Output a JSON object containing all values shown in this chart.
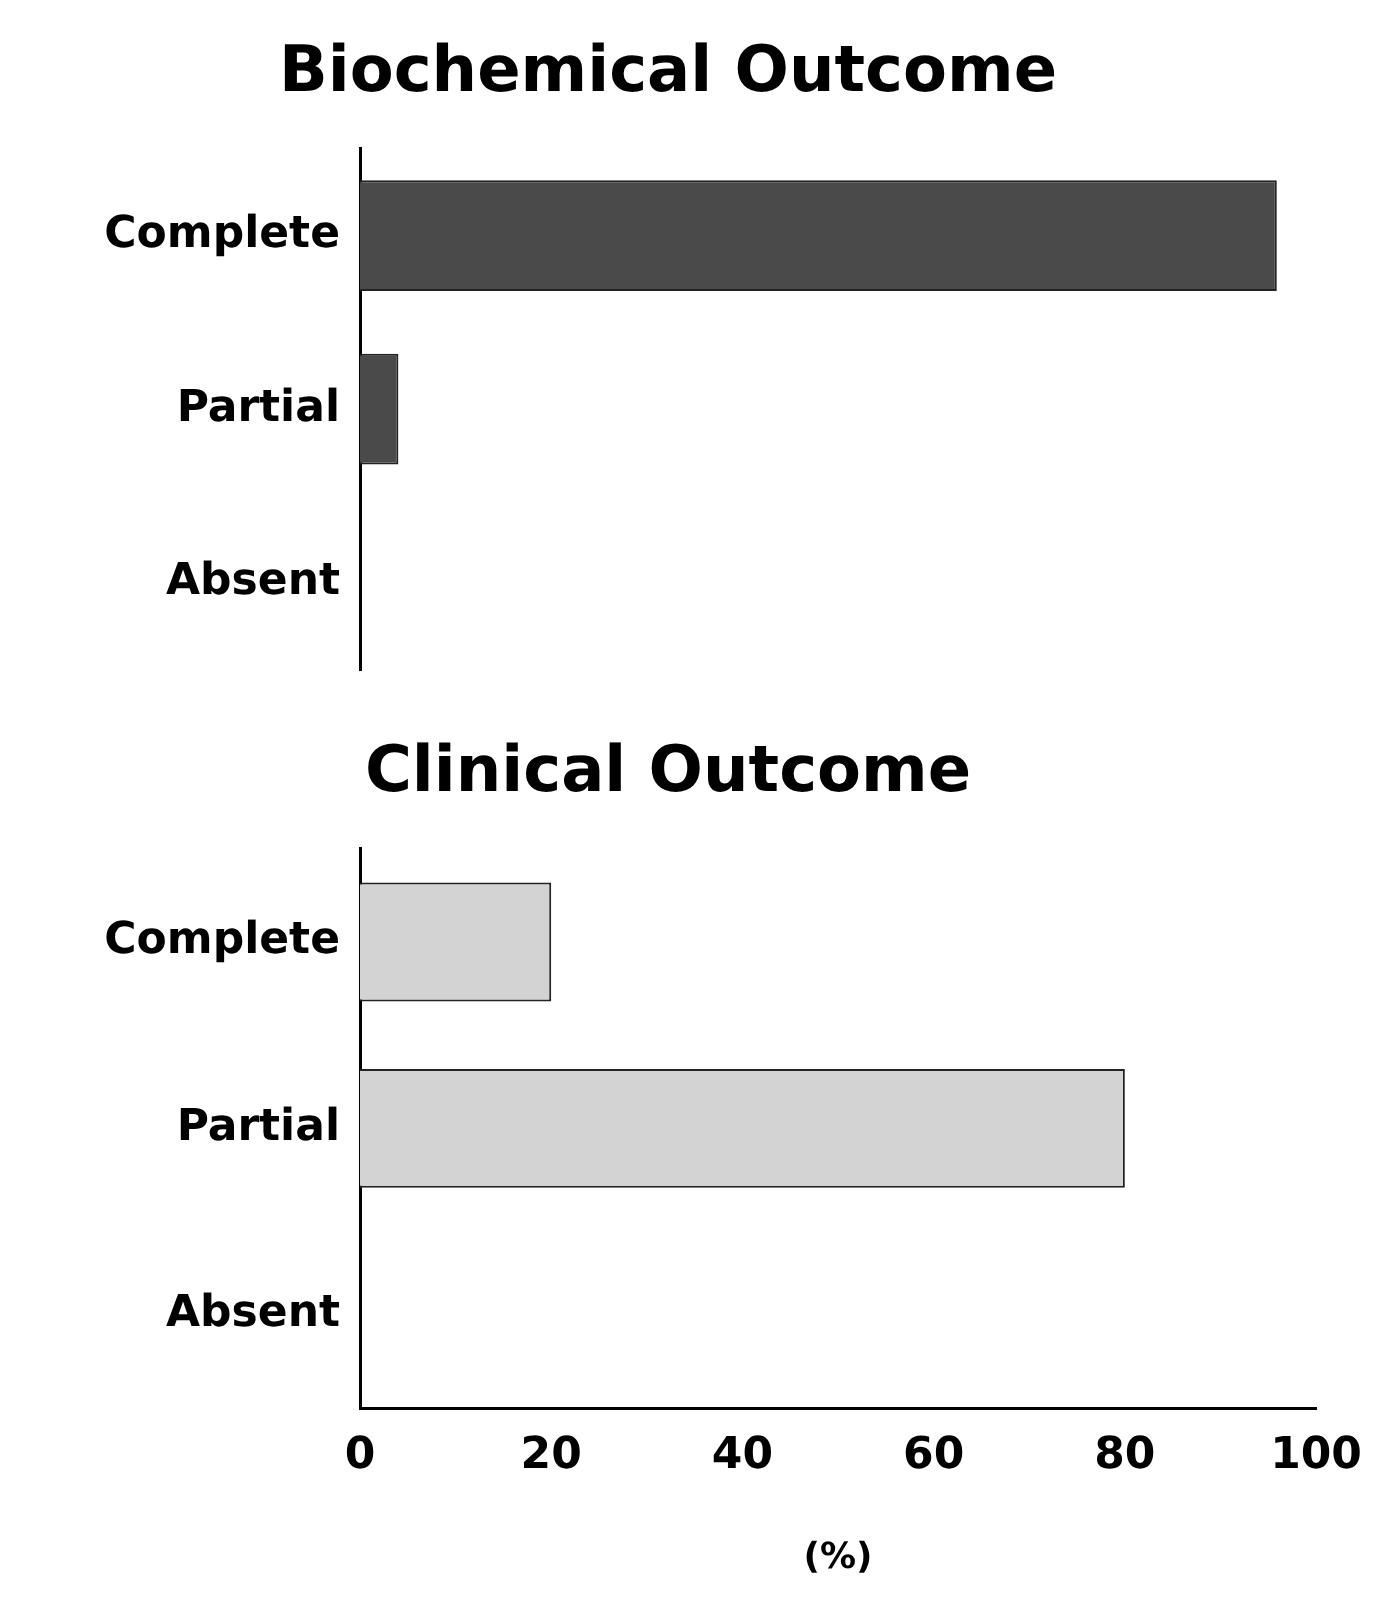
{
  "chart_data": [
    {
      "type": "bar",
      "orientation": "horizontal",
      "title": "Biochemical Outcome",
      "categories": [
        "Complete",
        "Partial",
        "Absent"
      ],
      "values": [
        95.5,
        4,
        0
      ],
      "color": "#4a4a4a",
      "xlim": [
        0,
        100
      ],
      "tick_labels": "y",
      "grid": false,
      "legend": false
    },
    {
      "type": "bar",
      "orientation": "horizontal",
      "title": "Clinical Outcome",
      "categories": [
        "Complete",
        "Partial",
        "Absent"
      ],
      "values": [
        20,
        80,
        0
      ],
      "color": "#d3d3d3",
      "xlim": [
        0,
        100
      ],
      "xticks": [
        0,
        20,
        40,
        60,
        80,
        100
      ],
      "xlabel": "(%)",
      "grid": false,
      "legend": false
    }
  ]
}
